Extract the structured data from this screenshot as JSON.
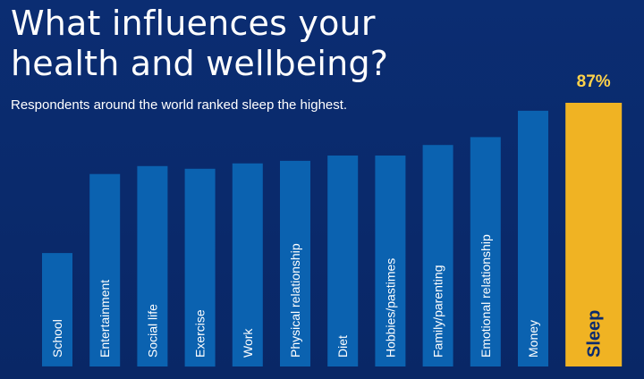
{
  "title": "What influences your\nhealth and wellbeing?",
  "subtitle": "Respondents around the world ranked sleep the highest.",
  "colors": {
    "background": "#0a2a6e",
    "bar": "#0b62b0",
    "highlight": "#f0b323",
    "highlight_label": "#ffd24a",
    "text": "#ffffff",
    "highlight_text": "#0a2a6e"
  },
  "chart_data": {
    "type": "bar",
    "orientation": "vertical",
    "categories": [
      "School",
      "Entertainment",
      "Social life",
      "Exercise",
      "Work",
      "Physical relationship",
      "Diet",
      "Hobbies/pastimes",
      "Family/parenting",
      "Emotional relationship",
      "Money",
      "Sleep"
    ],
    "values": [
      43,
      73,
      76,
      75,
      77,
      78,
      80,
      80,
      84,
      87,
      97,
      100
    ],
    "highlight_index": 11,
    "highlight_label": "87%",
    "ylim": [
      0,
      100
    ],
    "axes_visible": false,
    "grid": false,
    "legend": "none",
    "category_labels": "inside-bars-rotated"
  }
}
